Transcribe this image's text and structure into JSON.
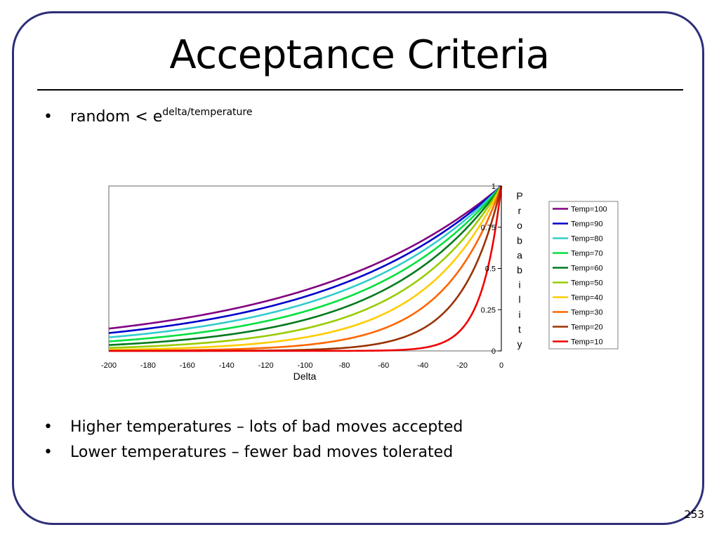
{
  "slide": {
    "title": "Acceptance Criteria",
    "page_number": "253",
    "formula": {
      "base": "random < e",
      "exponent": "delta/temperature"
    },
    "bullets": [
      "Higher temperatures – lots of bad moves accepted",
      "Lower temperatures – fewer bad moves tolerated"
    ]
  },
  "colors": {
    "frame": "#2e2e7a",
    "plot_border": "#808080"
  },
  "chart_data": {
    "type": "line",
    "function": "y = e^(x / T)",
    "xlabel": "Delta",
    "ylabel": "Probability",
    "xlim": [
      -200,
      0
    ],
    "ylim": [
      0,
      1
    ],
    "xticks": [
      "-200",
      "-180",
      "-160",
      "-140",
      "-120",
      "-100",
      "-80",
      "-60",
      "-40",
      "-20",
      "0"
    ],
    "yticks": [
      "0",
      "0.25",
      "0.5",
      "0.75",
      "1"
    ],
    "grid": false,
    "legend_position": "right",
    "series": [
      {
        "name": "Temp=100",
        "temperature": 100,
        "color": "#800080"
      },
      {
        "name": "Temp=90",
        "temperature": 90,
        "color": "#0000cc"
      },
      {
        "name": "Temp=80",
        "temperature": 80,
        "color": "#33cccc"
      },
      {
        "name": "Temp=70",
        "temperature": 70,
        "color": "#00e040"
      },
      {
        "name": "Temp=60",
        "temperature": 60,
        "color": "#007a1c"
      },
      {
        "name": "Temp=50",
        "temperature": 50,
        "color": "#99cc00"
      },
      {
        "name": "Temp=40",
        "temperature": 40,
        "color": "#ffcc00"
      },
      {
        "name": "Temp=30",
        "temperature": 30,
        "color": "#ff6600"
      },
      {
        "name": "Temp=20",
        "temperature": 20,
        "color": "#993300"
      },
      {
        "name": "Temp=10",
        "temperature": 10,
        "color": "#ee0000"
      }
    ]
  }
}
